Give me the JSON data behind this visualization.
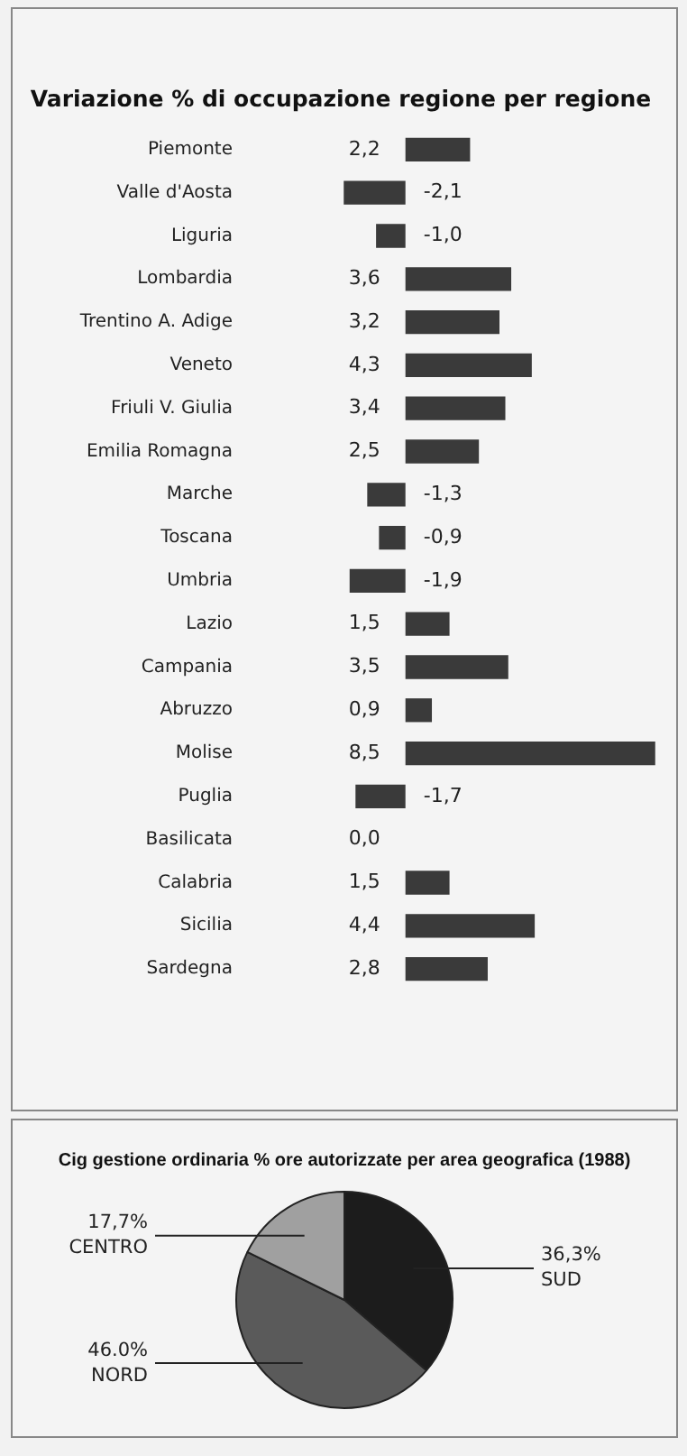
{
  "chart_data": [
    {
      "type": "bar",
      "orientation": "horizontal",
      "title": "Variazione % di occupazione regione per regione",
      "categories": [
        "Piemonte",
        "Valle d'Aosta",
        "Liguria",
        "Lombardia",
        "Trentino A. Adige",
        "Veneto",
        "Friuli V. Giulia",
        "Emilia Romagna",
        "Marche",
        "Toscana",
        "Umbria",
        "Lazio",
        "Campania",
        "Abruzzo",
        "Molise",
        "Puglia",
        "Basilicata",
        "Calabria",
        "Sicilia",
        "Sardegna"
      ],
      "values": [
        2.2,
        -2.1,
        -1.0,
        3.6,
        3.2,
        4.3,
        3.4,
        2.5,
        -1.3,
        -0.9,
        -1.9,
        1.5,
        3.5,
        0.9,
        8.5,
        -1.7,
        0.0,
        1.5,
        4.4,
        2.8
      ],
      "value_labels": [
        "2,2",
        "-2,1",
        "-1,0",
        "3,6",
        "3,2",
        "4,3",
        "3,4",
        "2,5",
        "-1,3",
        "-0,9",
        "-1,9",
        "1,5",
        "3,5",
        "0,9",
        "8,5",
        "-1,7",
        "0,0",
        "1,5",
        "4,4",
        "2,8"
      ],
      "color": "#3a3a3a",
      "xlim": [
        -2.2,
        8.6
      ],
      "tick_labels": "y",
      "grid": false,
      "legend": false
    },
    {
      "type": "pie",
      "title": "Cig gestione ordinaria % ore autorizzate per area geografica (1988)",
      "categories": [
        "SUD",
        "NORD",
        "CENTRO"
      ],
      "values": [
        36.3,
        46.0,
        17.7
      ],
      "value_labels": [
        "36,3%",
        "46.0%",
        "17,7%"
      ],
      "colors": [
        "#1c1c1c",
        "#5a5a5a",
        "#a0a0a0"
      ],
      "legend": false
    }
  ]
}
